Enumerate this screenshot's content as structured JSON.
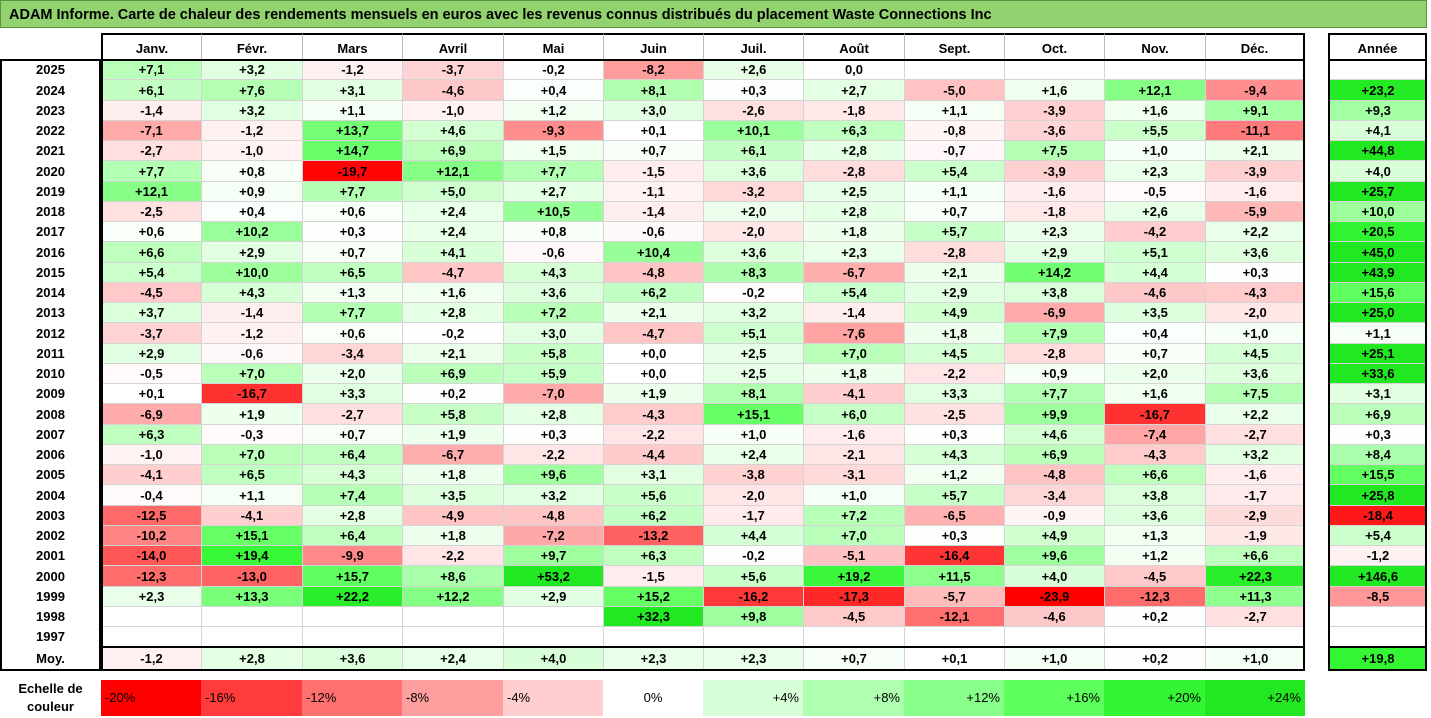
{
  "title": "ADAM Informe. Carte de chaleur des rendements mensuels en euros avec les revenus connus distribués du placement Waste Connections Inc",
  "chart_data": {
    "type": "heatmap",
    "title": "ADAM Informe. Carte de chaleur des rendements mensuels en euros avec les revenus connus distribués du placement Waste Connections Inc",
    "columns": [
      "Janv.",
      "Févr.",
      "Mars",
      "Avril",
      "Mai",
      "Juin",
      "Juil.",
      "Août",
      "Sept.",
      "Oct.",
      "Nov.",
      "Déc."
    ],
    "year_column_label": "Année",
    "rows": [
      {
        "year": "2025",
        "values": [
          "+7,1",
          "+3,2",
          "-1,2",
          "-3,7",
          "-0,2",
          "-8,2",
          "+2,6",
          "0,0",
          "",
          "",
          "",
          ""
        ],
        "annual": ""
      },
      {
        "year": "2024",
        "values": [
          "+6,1",
          "+7,6",
          "+3,1",
          "-4,6",
          "+0,4",
          "+8,1",
          "+0,3",
          "+2,7",
          "-5,0",
          "+1,6",
          "+12,1",
          "-9,4"
        ],
        "annual": "+23,2"
      },
      {
        "year": "2023",
        "values": [
          "-1,4",
          "+3,2",
          "+1,1",
          "-1,0",
          "+1,2",
          "+3,0",
          "-2,6",
          "-1,8",
          "+1,1",
          "-3,9",
          "+1,6",
          "+9,1"
        ],
        "annual": "+9,3"
      },
      {
        "year": "2022",
        "values": [
          "-7,1",
          "-1,2",
          "+13,7",
          "+4,6",
          "-9,3",
          "+0,1",
          "+10,1",
          "+6,3",
          "-0,8",
          "-3,6",
          "+5,5",
          "-11,1"
        ],
        "annual": "+4,1"
      },
      {
        "year": "2021",
        "values": [
          "-2,7",
          "-1,0",
          "+14,7",
          "+6,9",
          "+1,5",
          "+0,7",
          "+6,1",
          "+2,8",
          "-0,7",
          "+7,5",
          "+1,0",
          "+2,1"
        ],
        "annual": "+44,8"
      },
      {
        "year": "2020",
        "values": [
          "+7,7",
          "+0,8",
          "-19,7",
          "+12,1",
          "+7,7",
          "-1,5",
          "+3,6",
          "-2,8",
          "+5,4",
          "-3,9",
          "+2,3",
          "-3,9"
        ],
        "annual": "+4,0"
      },
      {
        "year": "2019",
        "values": [
          "+12,1",
          "+0,9",
          "+7,7",
          "+5,0",
          "+2,7",
          "-1,1",
          "-3,2",
          "+2,5",
          "+1,1",
          "-1,6",
          "-0,5",
          "-1,6"
        ],
        "annual": "+25,7"
      },
      {
        "year": "2018",
        "values": [
          "-2,5",
          "+0,4",
          "+0,6",
          "+2,4",
          "+10,5",
          "-1,4",
          "+2,0",
          "+2,8",
          "+0,7",
          "-1,8",
          "+2,6",
          "-5,9"
        ],
        "annual": "+10,0"
      },
      {
        "year": "2017",
        "values": [
          "+0,6",
          "+10,2",
          "+0,3",
          "+2,4",
          "+0,8",
          "-0,6",
          "-2,0",
          "+1,8",
          "+5,7",
          "+2,3",
          "-4,2",
          "+2,2"
        ],
        "annual": "+20,5"
      },
      {
        "year": "2016",
        "values": [
          "+6,6",
          "+2,9",
          "+0,7",
          "+4,1",
          "-0,6",
          "+10,4",
          "+3,6",
          "+2,3",
          "-2,8",
          "+2,9",
          "+5,1",
          "+3,6"
        ],
        "annual": "+45,0"
      },
      {
        "year": "2015",
        "values": [
          "+5,4",
          "+10,0",
          "+6,5",
          "-4,7",
          "+4,3",
          "-4,8",
          "+8,3",
          "-6,7",
          "+2,1",
          "+14,2",
          "+4,4",
          "+0,3"
        ],
        "annual": "+43,9"
      },
      {
        "year": "2014",
        "values": [
          "-4,5",
          "+4,3",
          "+1,3",
          "+1,6",
          "+3,6",
          "+6,2",
          "-0,2",
          "+5,4",
          "+2,9",
          "+3,8",
          "-4,6",
          "-4,3"
        ],
        "annual": "+15,6"
      },
      {
        "year": "2013",
        "values": [
          "+3,7",
          "-1,4",
          "+7,7",
          "+2,8",
          "+7,2",
          "+2,1",
          "+3,2",
          "-1,4",
          "+4,9",
          "-6,9",
          "+3,5",
          "-2,0"
        ],
        "annual": "+25,0"
      },
      {
        "year": "2012",
        "values": [
          "-3,7",
          "-1,2",
          "+0,6",
          "-0,2",
          "+3,0",
          "-4,7",
          "+5,1",
          "-7,6",
          "+1,8",
          "+7,9",
          "+0,4",
          "+1,0"
        ],
        "annual": "+1,1"
      },
      {
        "year": "2011",
        "values": [
          "+2,9",
          "-0,6",
          "-3,4",
          "+2,1",
          "+5,8",
          "+0,0",
          "+2,5",
          "+7,0",
          "+4,5",
          "-2,8",
          "+0,7",
          "+4,5"
        ],
        "annual": "+25,1"
      },
      {
        "year": "2010",
        "values": [
          "-0,5",
          "+7,0",
          "+2,0",
          "+6,9",
          "+5,9",
          "+0,0",
          "+2,5",
          "+1,8",
          "-2,2",
          "+0,9",
          "+2,0",
          "+3,6"
        ],
        "annual": "+33,6"
      },
      {
        "year": "2009",
        "values": [
          "+0,1",
          "-16,7",
          "+3,3",
          "+0,2",
          "-7,0",
          "+1,9",
          "+8,1",
          "-4,1",
          "+3,3",
          "+7,7",
          "+1,6",
          "+7,5"
        ],
        "annual": "+3,1"
      },
      {
        "year": "2008",
        "values": [
          "-6,9",
          "+1,9",
          "-2,7",
          "+5,8",
          "+2,8",
          "-4,3",
          "+15,1",
          "+6,0",
          "-2,5",
          "+9,9",
          "-16,7",
          "+2,2"
        ],
        "annual": "+6,9"
      },
      {
        "year": "2007",
        "values": [
          "+6,3",
          "-0,3",
          "+0,7",
          "+1,9",
          "+0,3",
          "-2,2",
          "+1,0",
          "-1,6",
          "+0,3",
          "+4,6",
          "-7,4",
          "-2,7"
        ],
        "annual": "+0,3"
      },
      {
        "year": "2006",
        "values": [
          "-1,0",
          "+7,0",
          "+6,4",
          "-6,7",
          "-2,2",
          "-4,4",
          "+2,4",
          "-2,1",
          "+4,3",
          "+6,9",
          "-4,3",
          "+3,2"
        ],
        "annual": "+8,4"
      },
      {
        "year": "2005",
        "values": [
          "-4,1",
          "+6,5",
          "+4,3",
          "+1,8",
          "+9,6",
          "+3,1",
          "-3,8",
          "-3,1",
          "+1,2",
          "-4,8",
          "+6,6",
          "-1,6"
        ],
        "annual": "+15,5"
      },
      {
        "year": "2004",
        "values": [
          "-0,4",
          "+1,1",
          "+7,4",
          "+3,5",
          "+3,2",
          "+5,6",
          "-2,0",
          "+1,0",
          "+5,7",
          "-3,4",
          "+3,8",
          "-1,7"
        ],
        "annual": "+25,8"
      },
      {
        "year": "2003",
        "values": [
          "-12,5",
          "-4,1",
          "+2,8",
          "-4,9",
          "-4,8",
          "+6,2",
          "-1,7",
          "+7,2",
          "-6,5",
          "-0,9",
          "+3,6",
          "-2,9"
        ],
        "annual": "-18,4"
      },
      {
        "year": "2002",
        "values": [
          "-10,2",
          "+15,1",
          "+6,4",
          "+1,8",
          "-7,2",
          "-13,2",
          "+4,4",
          "+7,0",
          "+0,3",
          "+4,9",
          "+1,3",
          "-1,9"
        ],
        "annual": "+5,4"
      },
      {
        "year": "2001",
        "values": [
          "-14,0",
          "+19,4",
          "-9,9",
          "-2,2",
          "+9,7",
          "+6,3",
          "-0,2",
          "-5,1",
          "-16,4",
          "+9,6",
          "+1,2",
          "+6,6"
        ],
        "annual": "-1,2"
      },
      {
        "year": "2000",
        "values": [
          "-12,3",
          "-13,0",
          "+15,7",
          "+8,6",
          "+53,2",
          "-1,5",
          "+5,6",
          "+19,2",
          "+11,5",
          "+4,0",
          "-4,5",
          "+22,3"
        ],
        "annual": "+146,6"
      },
      {
        "year": "1999",
        "values": [
          "+2,3",
          "+13,3",
          "+22,2",
          "+12,2",
          "+2,9",
          "+15,2",
          "-16,2",
          "-17,3",
          "-5,7",
          "-23,9",
          "-12,3",
          "+11,3"
        ],
        "annual": "-8,5"
      },
      {
        "year": "1998",
        "values": [
          "",
          "",
          "",
          "",
          "",
          "+32,3",
          "+9,8",
          "-4,5",
          "-12,1",
          "-4,6",
          "+0,2",
          "-2,7"
        ],
        "annual": ""
      },
      {
        "year": "1997",
        "values": [
          "",
          "",
          "",
          "",
          "",
          "",
          "",
          "",
          "",
          "",
          "",
          ""
        ],
        "annual": ""
      }
    ],
    "average": {
      "label": "Moy.",
      "values": [
        "-1,2",
        "+2,8",
        "+3,6",
        "+2,4",
        "+4,0",
        "+2,3",
        "+2,3",
        "+0,7",
        "+0,1",
        "+1,0",
        "+0,2",
        "+1,0"
      ],
      "annual": "+19,8"
    },
    "color_scale": {
      "label": "Echelle de couleur",
      "steps": [
        {
          "label": "-20%",
          "value": -20,
          "color": "#ff0000"
        },
        {
          "label": "-16%",
          "value": -16,
          "color": "#ff3b3b"
        },
        {
          "label": "-12%",
          "value": -12,
          "color": "#ff7070"
        },
        {
          "label": "-8%",
          "value": -8,
          "color": "#ff9e9e"
        },
        {
          "label": "-4%",
          "value": -4,
          "color": "#ffcfcf"
        },
        {
          "label": "0%",
          "value": 0,
          "color": "#ffffff"
        },
        {
          "label": "+4%",
          "value": 4,
          "color": "#d9ffd9"
        },
        {
          "label": "+8%",
          "value": 8,
          "color": "#b0ffb0"
        },
        {
          "label": "+12%",
          "value": 12,
          "color": "#88ff88"
        },
        {
          "label": "+16%",
          "value": 16,
          "color": "#5cff5c"
        },
        {
          "label": "+20%",
          "value": 20,
          "color": "#33f533"
        },
        {
          "label": "+24%",
          "value": 24,
          "color": "#22e822"
        }
      ]
    }
  }
}
